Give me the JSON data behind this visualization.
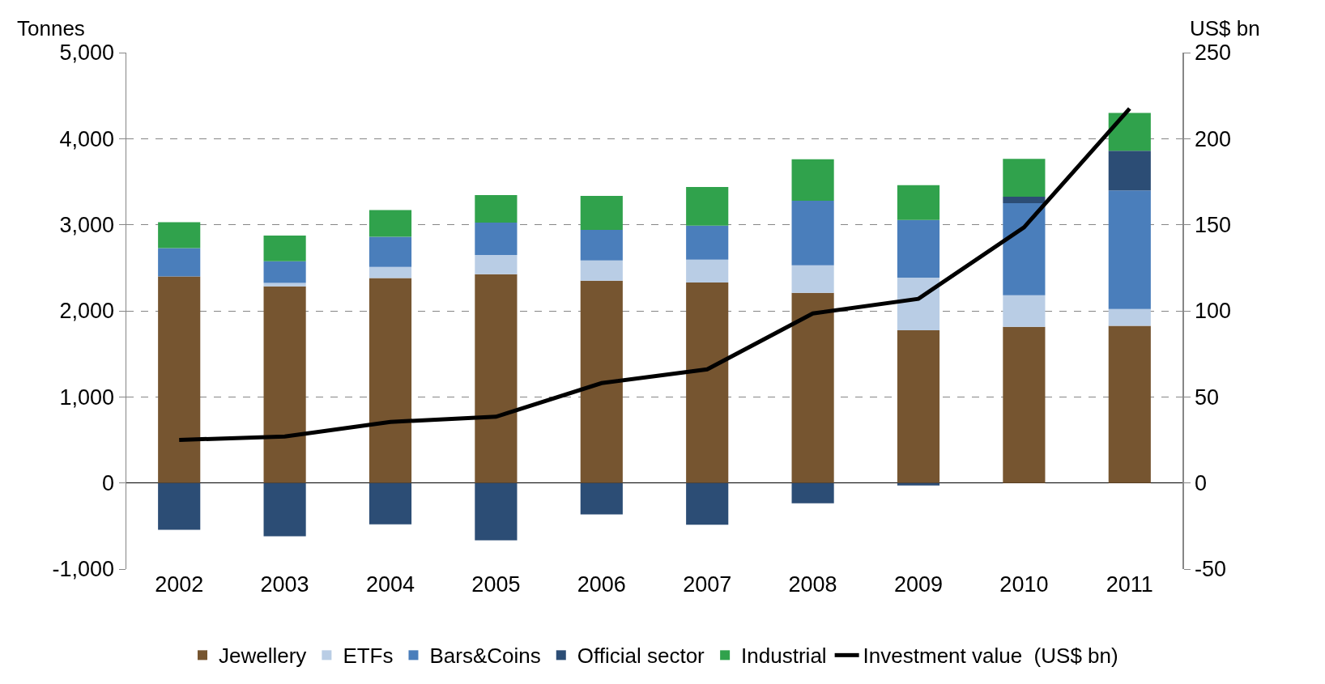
{
  "chart_data": {
    "type": "bar",
    "stacked": true,
    "ylabel": "Tonnes",
    "y2label": "US$ bn",
    "categories": [
      "2002",
      "2003",
      "2004",
      "2005",
      "2006",
      "2007",
      "2008",
      "2009",
      "2010",
      "2011"
    ],
    "series": [
      {
        "name": "Jewellery",
        "color": "#765530",
        "values": [
          2400,
          2285,
          2380,
          2425,
          2350,
          2330,
          2210,
          1775,
          1815,
          1825
        ]
      },
      {
        "name": "ETFs",
        "color": "#b9cde5",
        "values": [
          null,
          40,
          130,
          225,
          235,
          265,
          320,
          610,
          365,
          195
        ]
      },
      {
        "name": "Bars&Coins",
        "color": "#4a7ebb",
        "values": [
          330,
          250,
          350,
          375,
          355,
          395,
          750,
          670,
          1070,
          1380
        ]
      },
      {
        "name": "Official sector",
        "color": "#2c4d75",
        "values": [
          -545,
          -620,
          -480,
          -665,
          -365,
          -485,
          -235,
          -30,
          75,
          460
        ]
      },
      {
        "name": "Industrial",
        "color": "#30a24c",
        "values": [
          300,
          300,
          310,
          320,
          395,
          450,
          480,
          405,
          440,
          440
        ]
      },
      {
        "name": "Investment value  (US$ bn)",
        "type": "line",
        "axis": "y2",
        "color": "#000000",
        "marker": "none",
        "line_style": "solid",
        "values": [
          25,
          27,
          35.5,
          38.5,
          58,
          66,
          98.5,
          107,
          148.5,
          217.5
        ]
      }
    ],
    "ylim": [
      -1000,
      5000
    ],
    "yticks": [
      {
        "value": -1000,
        "label": "-1,000"
      },
      0,
      {
        "value": 1000,
        "label": "1,000"
      },
      {
        "value": 2000,
        "label": "2,000"
      },
      {
        "value": 3000,
        "label": "3,000"
      },
      {
        "value": 4000,
        "label": "4,000"
      },
      {
        "value": 5000,
        "label": "5,000"
      }
    ],
    "y2lim": [
      -50,
      250
    ],
    "y2ticks": [
      -50,
      0,
      50,
      100,
      150,
      200,
      250
    ],
    "grid": "y",
    "legend": "bottom"
  }
}
